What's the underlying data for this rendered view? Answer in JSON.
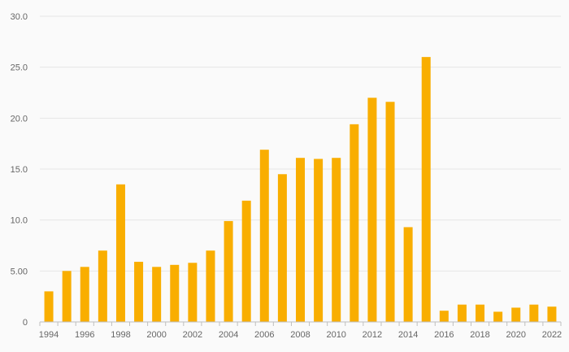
{
  "chart_data": {
    "type": "bar",
    "categories": [
      "1994",
      "1995",
      "1996",
      "1997",
      "1998",
      "1999",
      "2000",
      "2001",
      "2002",
      "2003",
      "2004",
      "2005",
      "2006",
      "2007",
      "2008",
      "2009",
      "2010",
      "2011",
      "2012",
      "2013",
      "2014",
      "2015",
      "2016",
      "2017",
      "2018",
      "2019",
      "2020",
      "2021",
      "2022"
    ],
    "values": [
      3.0,
      5.0,
      5.4,
      7.0,
      13.5,
      5.9,
      5.4,
      5.6,
      5.8,
      7.0,
      9.9,
      11.9,
      16.9,
      14.5,
      16.1,
      16.0,
      16.1,
      19.4,
      22.0,
      21.6,
      9.3,
      26.0,
      1.1,
      1.7,
      1.7,
      1.0,
      1.4,
      1.7,
      1.5
    ],
    "x_tick_labels": [
      "1994",
      "1996",
      "1998",
      "2000",
      "2002",
      "2004",
      "2006",
      "2008",
      "2010",
      "2012",
      "2014",
      "2016",
      "2018",
      "2020",
      "2022"
    ],
    "y_ticks": [
      0,
      5,
      10,
      15,
      20,
      25,
      30
    ],
    "y_tick_labels": [
      "0",
      "5.00",
      "10.0",
      "15.0",
      "20.0",
      "25.0",
      "30.0"
    ],
    "ylim": [
      0,
      30
    ],
    "grid": true,
    "legend": "none",
    "title": "",
    "xlabel": "",
    "ylabel": "",
    "bar_color": "#f9ae00",
    "grid_color": "#e6e6e6",
    "axis_color": "#bfbfbf",
    "text_color": "#666666"
  }
}
